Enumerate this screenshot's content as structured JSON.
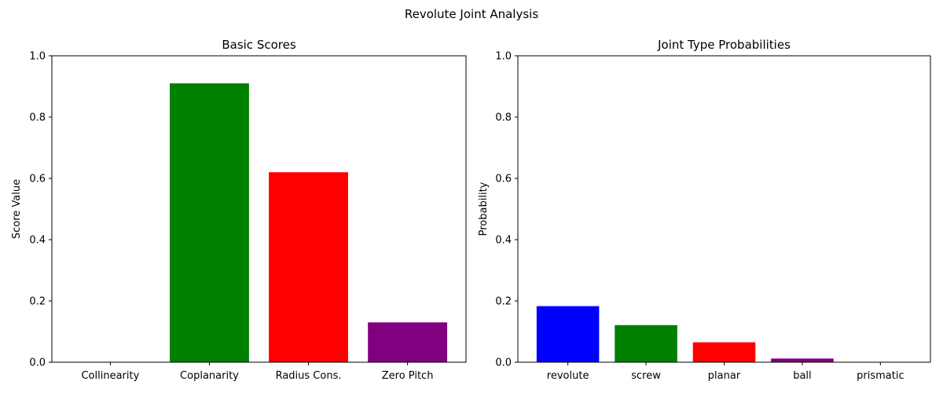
{
  "figure": {
    "suptitle": "Revolute Joint Analysis"
  },
  "chart_data": [
    {
      "type": "bar",
      "title": "Basic Scores",
      "xlabel": "",
      "ylabel": "Score Value",
      "ylim": [
        0,
        1
      ],
      "yticks": [
        "0.0",
        "0.2",
        "0.4",
        "0.6",
        "0.8",
        "1.0"
      ],
      "grid": false,
      "categories": [
        "Collinearity",
        "Coplanarity",
        "Radius Cons.",
        "Zero Pitch"
      ],
      "values": [
        0.0,
        0.91,
        0.62,
        0.13
      ],
      "colors": [
        "#1f77b4",
        "#008000",
        "#ff0000",
        "#800080"
      ]
    },
    {
      "type": "bar",
      "title": "Joint Type Probabilities",
      "xlabel": "",
      "ylabel": "Probability",
      "ylim": [
        0,
        1
      ],
      "yticks": [
        "0.0",
        "0.2",
        "0.4",
        "0.6",
        "0.8",
        "1.0"
      ],
      "grid": false,
      "categories": [
        "revolute",
        "screw",
        "planar",
        "ball",
        "prismatic"
      ],
      "values": [
        0.183,
        0.121,
        0.065,
        0.012,
        0.0
      ],
      "colors": [
        "#0000ff",
        "#008000",
        "#ff0000",
        "#800080",
        "#ffa500"
      ]
    }
  ]
}
